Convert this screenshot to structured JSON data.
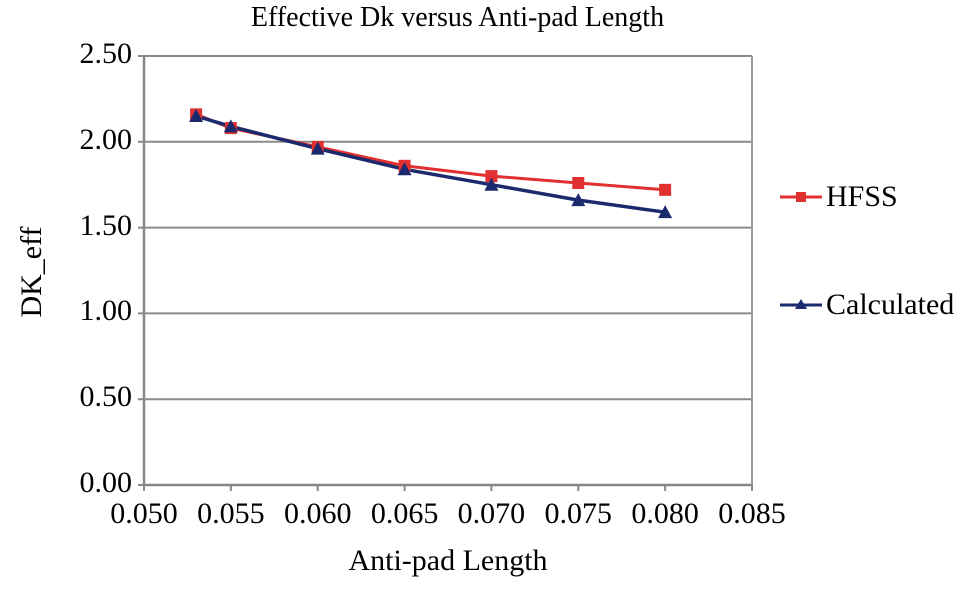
{
  "chart_data": {
    "type": "line",
    "title": "Effective Dk versus Anti-pad Length",
    "xlabel": "Anti-pad Length",
    "ylabel": "DK_eff",
    "xlim": [
      0.05,
      0.085
    ],
    "ylim": [
      0.0,
      2.5
    ],
    "x_ticks": [
      "0.050",
      "0.055",
      "0.060",
      "0.065",
      "0.070",
      "0.075",
      "0.080",
      "0.085"
    ],
    "y_ticks": [
      "2.50",
      "2.00",
      "1.50",
      "1.00",
      "0.50",
      "0.00"
    ],
    "grid": "horizontal",
    "legend_position": "right",
    "x": [
      0.053,
      0.055,
      0.06,
      0.065,
      0.07,
      0.075,
      0.08
    ],
    "series": [
      {
        "name": "HFSS",
        "color": "#e03030",
        "marker": "square",
        "values": [
          2.16,
          2.08,
          1.97,
          1.86,
          1.8,
          1.76,
          1.72
        ]
      },
      {
        "name": "Calculated",
        "color": "#1a2a6c",
        "marker": "triangle",
        "values": [
          2.15,
          2.09,
          1.96,
          1.84,
          1.75,
          1.66,
          1.59
        ]
      }
    ]
  },
  "legend": {
    "items": [
      {
        "label": "HFSS"
      },
      {
        "label": "Calculated"
      }
    ]
  }
}
